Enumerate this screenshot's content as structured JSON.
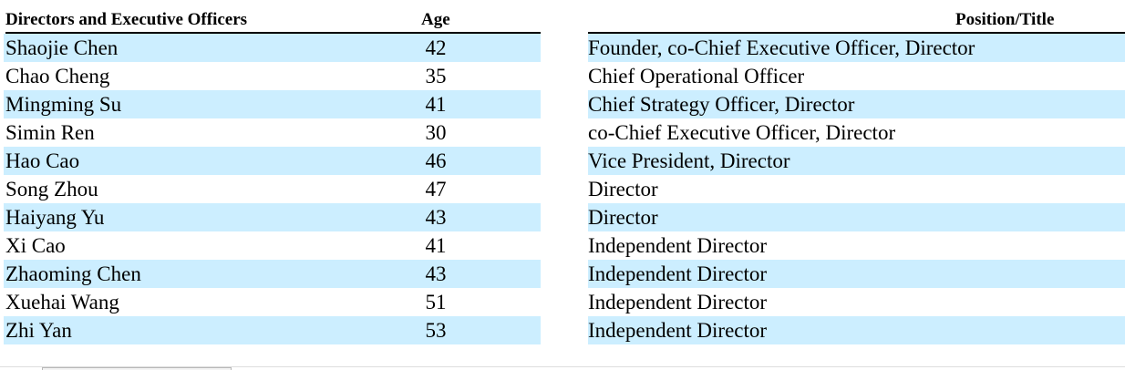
{
  "table": {
    "headers": {
      "name": "Directors and Executive Officers",
      "age": "Age",
      "position": "Position/Title"
    },
    "rows": [
      {
        "name": "Shaojie Chen",
        "age": "42",
        "position": "Founder, co-Chief Executive Officer, Director"
      },
      {
        "name": "Chao Cheng",
        "age": "35",
        "position": "Chief Operational Officer"
      },
      {
        "name": "Mingming Su",
        "age": "41",
        "position": "Chief Strategy Officer, Director"
      },
      {
        "name": "Simin Ren",
        "age": "30",
        "position": "co-Chief Executive Officer, Director"
      },
      {
        "name": "Hao Cao",
        "age": "46",
        "position": "Vice President, Director"
      },
      {
        "name": "Song Zhou",
        "age": "47",
        "position": "Director"
      },
      {
        "name": "Haiyang Yu",
        "age": "43",
        "position": "Director"
      },
      {
        "name": "Xi Cao",
        "age": "41",
        "position": "Independent Director"
      },
      {
        "name": "Zhaoming Chen",
        "age": "43",
        "position": "Independent Director"
      },
      {
        "name": "Xuehai Wang",
        "age": "51",
        "position": "Independent Director"
      },
      {
        "name": "Zhi Yan",
        "age": "53",
        "position": "Independent Director"
      }
    ]
  },
  "colors": {
    "row_shade": "#cceeff",
    "rule": "#000000"
  }
}
